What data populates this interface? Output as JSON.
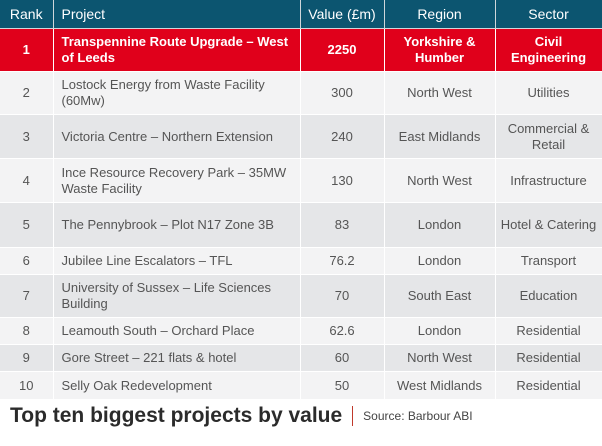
{
  "headers": [
    "Rank",
    "Project",
    "Value (£m)",
    "Region",
    "Sector"
  ],
  "rows": [
    {
      "rank": "1",
      "project": "Transpennine Route Upgrade – West of Leeds",
      "value": "2250",
      "region": "Yorkshire & Humber",
      "sector": "Civil Engineering"
    },
    {
      "rank": "2",
      "project": "Lostock Energy from Waste Facility (60Mw)",
      "value": "300",
      "region": "North West",
      "sector": "Utilities"
    },
    {
      "rank": "3",
      "project": "Victoria Centre – Northern Extension",
      "value": "240",
      "region": "East Midlands",
      "sector": "Commercial & Retail"
    },
    {
      "rank": "4",
      "project": "Ince Resource Recovery Park – 35MW Waste Facility",
      "value": "130",
      "region": "North West",
      "sector": "Infrastructure"
    },
    {
      "rank": "5",
      "project": "The Pennybrook – Plot N17 Zone 3B",
      "value": "83",
      "region": "London",
      "sector": "Hotel & Catering"
    },
    {
      "rank": "6",
      "project": "Jubilee Line Escalators – TFL",
      "value": "76.2",
      "region": "London",
      "sector": "Transport"
    },
    {
      "rank": "7",
      "project": "University of Sussex – Life Sciences Building",
      "value": "70",
      "region": "South East",
      "sector": "Education"
    },
    {
      "rank": "8",
      "project": "Leamouth South – Orchard Place",
      "value": "62.6",
      "region": "London",
      "sector": "Residential"
    },
    {
      "rank": "9",
      "project": "Gore Street – 221 flats & hotel",
      "value": "60",
      "region": "North West",
      "sector": "Residential"
    },
    {
      "rank": "10",
      "project": "Selly Oak Redevelopment",
      "value": "50",
      "region": "West Midlands",
      "sector": "Residential"
    }
  ],
  "caption": {
    "title": "Top ten biggest projects by value",
    "source": "Source: Barbour ABI"
  },
  "colors": {
    "header": "#0c5570",
    "highlight": "#e0001b"
  }
}
